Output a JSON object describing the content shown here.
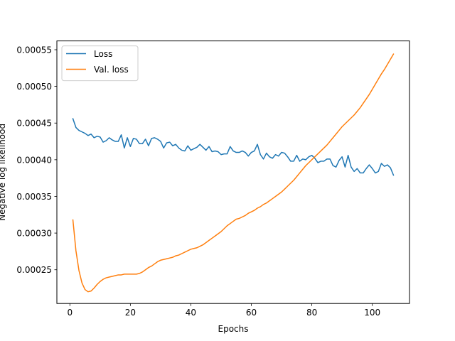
{
  "chart_data": {
    "type": "line",
    "title": "",
    "xlabel": "Epochs",
    "ylabel": "Negative log likelihood",
    "xlim": [
      -4.3,
      112.3
    ],
    "ylim": [
      0.000204,
      0.000562
    ],
    "xticks": [
      0,
      20,
      40,
      60,
      80,
      100
    ],
    "xtick_labels": [
      "0",
      "20",
      "40",
      "60",
      "80",
      "100"
    ],
    "yticks": [
      0.00025,
      0.0003,
      0.00035,
      0.0004,
      0.00045,
      0.0005,
      0.00055
    ],
    "ytick_labels": [
      "0.00025",
      "0.00030",
      "0.00035",
      "0.00040",
      "0.00045",
      "0.00050",
      "0.00055"
    ],
    "grid": false,
    "legend_position": "top-left",
    "x": [
      1,
      2,
      3,
      4,
      5,
      6,
      7,
      8,
      9,
      10,
      11,
      12,
      13,
      14,
      15,
      16,
      17,
      18,
      19,
      20,
      21,
      22,
      23,
      24,
      25,
      26,
      27,
      28,
      29,
      30,
      31,
      32,
      33,
      34,
      35,
      36,
      37,
      38,
      39,
      40,
      41,
      42,
      43,
      44,
      45,
      46,
      47,
      48,
      49,
      50,
      51,
      52,
      53,
      54,
      55,
      56,
      57,
      58,
      59,
      60,
      61,
      62,
      63,
      64,
      65,
      66,
      67,
      68,
      69,
      70,
      71,
      72,
      73,
      74,
      75,
      76,
      77,
      78,
      79,
      80,
      81,
      82,
      83,
      84,
      85,
      86,
      87,
      88,
      89,
      90,
      91,
      92,
      93,
      94,
      95,
      96,
      97,
      98,
      99,
      100,
      101,
      102,
      103,
      104,
      105,
      106,
      107
    ],
    "series": [
      {
        "name": "Loss",
        "color": "#1f77b4",
        "values": [
          0.000456,
          0.000444,
          0.00044,
          0.000438,
          0.000436,
          0.000433,
          0.000435,
          0.00043,
          0.000432,
          0.000431,
          0.000424,
          0.000426,
          0.00043,
          0.000427,
          0.000425,
          0.000425,
          0.000434,
          0.000416,
          0.00043,
          0.000418,
          0.000429,
          0.000428,
          0.000422,
          0.000422,
          0.000428,
          0.000419,
          0.000429,
          0.00043,
          0.000428,
          0.000425,
          0.000416,
          0.000423,
          0.000424,
          0.000419,
          0.000421,
          0.000416,
          0.000413,
          0.000412,
          0.000419,
          0.000413,
          0.000415,
          0.000417,
          0.000421,
          0.000417,
          0.000413,
          0.000418,
          0.000411,
          0.000412,
          0.000411,
          0.000407,
          0.000408,
          0.000408,
          0.000418,
          0.000412,
          0.00041,
          0.00041,
          0.000412,
          0.00041,
          0.000405,
          0.00041,
          0.000412,
          0.000421,
          0.000407,
          0.000401,
          0.000409,
          0.000404,
          0.000402,
          0.000407,
          0.000405,
          0.00041,
          0.000409,
          0.000404,
          0.000398,
          0.000398,
          0.000406,
          0.000398,
          0.000401,
          0.0004,
          0.000404,
          0.000406,
          0.000402,
          0.000396,
          0.000398,
          0.000398,
          0.000401,
          0.000401,
          0.000392,
          0.00039,
          0.000399,
          0.000404,
          0.00039,
          0.000406,
          0.00039,
          0.000384,
          0.000388,
          0.000382,
          0.000382,
          0.000388,
          0.000393,
          0.000388,
          0.000382,
          0.000384,
          0.000395,
          0.000391,
          0.000393,
          0.000389,
          0.000379
        ]
      },
      {
        "name": "Val. loss",
        "color": "#ff7f0e",
        "values": [
          0.000318,
          0.000276,
          0.000249,
          0.000232,
          0.000223,
          0.00022,
          0.000221,
          0.000225,
          0.00023,
          0.000234,
          0.000237,
          0.000239,
          0.00024,
          0.000241,
          0.000242,
          0.000243,
          0.000243,
          0.000244,
          0.000244,
          0.000244,
          0.000244,
          0.000244,
          0.000245,
          0.000247,
          0.00025,
          0.000253,
          0.000255,
          0.000258,
          0.000261,
          0.000263,
          0.000264,
          0.000265,
          0.000266,
          0.000267,
          0.000269,
          0.00027,
          0.000272,
          0.000274,
          0.000276,
          0.000278,
          0.000279,
          0.00028,
          0.000282,
          0.000284,
          0.000287,
          0.00029,
          0.000293,
          0.000296,
          0.000299,
          0.000302,
          0.000306,
          0.00031,
          0.000313,
          0.000316,
          0.000319,
          0.00032,
          0.000322,
          0.000324,
          0.000327,
          0.000329,
          0.000331,
          0.000334,
          0.000336,
          0.000339,
          0.000341,
          0.000344,
          0.000347,
          0.00035,
          0.000353,
          0.000356,
          0.00036,
          0.000364,
          0.000368,
          0.000372,
          0.000377,
          0.000382,
          0.000387,
          0.000392,
          0.000396,
          0.0004,
          0.000404,
          0.000408,
          0.000412,
          0.000416,
          0.00042,
          0.000425,
          0.00043,
          0.000435,
          0.00044,
          0.000445,
          0.000449,
          0.000453,
          0.000457,
          0.000461,
          0.000466,
          0.000471,
          0.000477,
          0.000483,
          0.000489,
          0.000496,
          0.000503,
          0.00051,
          0.000517,
          0.000523,
          0.00053,
          0.000537,
          0.000544
        ]
      }
    ]
  }
}
